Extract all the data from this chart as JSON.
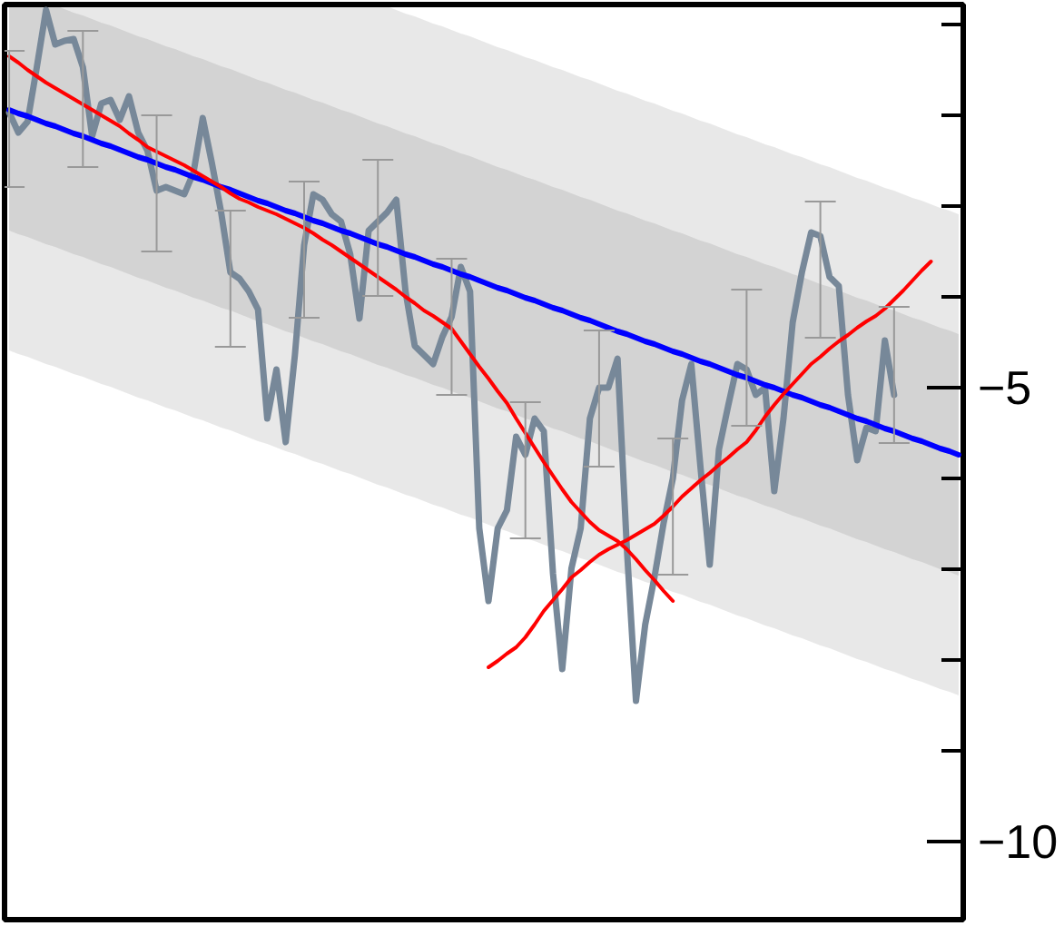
{
  "chart_data": {
    "type": "line",
    "categories": [
      null,
      null,
      null,
      null,
      null,
      null,
      null,
      null,
      null,
      null,
      null,
      null,
      null,
      null,
      null,
      null,
      null,
      null,
      null,
      null,
      null,
      null,
      null,
      null,
      null,
      null,
      null,
      null,
      null,
      null,
      null,
      null,
      null,
      null,
      null,
      null,
      null,
      null,
      null,
      null,
      null,
      null,
      null,
      null,
      null,
      null,
      null,
      null,
      null,
      null,
      null,
      null,
      null,
      null,
      null,
      null,
      null,
      null,
      null,
      null,
      null,
      null,
      null,
      null,
      null,
      null,
      null,
      null,
      null,
      null,
      null,
      null,
      null,
      null,
      null,
      null,
      null,
      null,
      null,
      null,
      null,
      null,
      null,
      null,
      null,
      null,
      null,
      null,
      null,
      null,
      null,
      null,
      null,
      null,
      null,
      null,
      null,
      null,
      null,
      null,
      null,
      null,
      null,
      null
    ],
    "ylim": [
      -10.86,
      -0.78
    ],
    "yticks": [
      {
        "value": -1,
        "label": null
      },
      {
        "value": -2,
        "label": null
      },
      {
        "value": -3,
        "label": null
      },
      {
        "value": -4,
        "label": null
      },
      {
        "value": -5,
        "label": "−5"
      },
      {
        "value": -6,
        "label": null
      },
      {
        "value": -7,
        "label": null
      },
      {
        "value": -8,
        "label": null
      },
      {
        "value": -9,
        "label": null
      },
      {
        "value": -10,
        "label": "−10"
      }
    ],
    "tick_labels": "y",
    "grid": false,
    "series": [
      {
        "values": [
          null,
          null,
          null,
          null,
          null,
          null,
          null,
          null,
          null,
          null,
          null,
          null,
          null,
          null,
          null,
          null,
          null,
          null,
          null,
          null,
          null,
          null,
          null,
          null,
          null,
          null,
          null,
          null,
          null,
          null,
          null,
          null,
          null,
          null,
          null,
          null,
          null,
          null,
          null,
          null,
          null,
          null,
          null,
          null,
          null,
          null,
          null,
          null,
          null,
          null,
          null,
          null,
          null,
          null,
          null,
          null,
          null,
          null,
          null,
          null,
          null,
          null,
          null,
          null,
          null,
          null,
          null,
          null,
          null,
          null,
          null,
          null,
          null,
          null,
          null,
          null,
          null,
          null,
          null,
          null,
          null,
          null,
          null,
          null,
          null,
          null,
          null,
          null,
          null,
          null,
          null,
          null,
          null,
          null,
          null,
          null,
          null,
          null,
          null,
          null,
          null,
          null,
          null,
          null
        ],
        "lower": [
          -4.59,
          -4.63,
          -4.66,
          -4.7,
          -4.74,
          -4.77,
          -4.81,
          -4.85,
          -4.88,
          -4.92,
          -4.96,
          -4.99,
          -5.03,
          -5.07,
          -5.11,
          -5.14,
          -5.18,
          -5.22,
          -5.25,
          -5.29,
          -5.33,
          -5.36,
          -5.4,
          -5.44,
          -5.47,
          -5.51,
          -5.55,
          -5.59,
          -5.62,
          -5.66,
          -5.7,
          -5.73,
          -5.77,
          -5.81,
          -5.84,
          -5.88,
          -5.92,
          -5.95,
          -5.99,
          -6.03,
          -6.07,
          -6.1,
          -6.14,
          -6.18,
          -6.21,
          -6.25,
          -6.29,
          -6.32,
          -6.36,
          -6.4,
          -6.43,
          -6.47,
          -6.51,
          -6.55,
          -6.58,
          -6.62,
          -6.66,
          -6.69,
          -6.73,
          -6.77,
          -6.8,
          -6.84,
          -6.88,
          -6.91,
          -6.95,
          -6.99,
          -7.03,
          -7.06,
          -7.1,
          -7.14,
          -7.17,
          -7.21,
          -7.25,
          -7.28,
          -7.32,
          -7.36,
          -7.39,
          -7.43,
          -7.47,
          -7.51,
          -7.54,
          -7.58,
          -7.62,
          -7.65,
          -7.69,
          -7.73,
          -7.76,
          -7.8,
          -7.84,
          -7.87,
          -7.91,
          -7.95,
          -7.99,
          -8.02,
          -8.06,
          -8.1,
          -8.13,
          -8.17,
          -8.21,
          -8.24,
          -8.28,
          -8.32,
          -8.35,
          -8.39
        ],
        "upper": [
          -0.78,
          -0.78,
          -0.78,
          -0.78,
          -0.78,
          -0.78,
          -0.78,
          -0.78,
          -0.78,
          -0.78,
          -0.78,
          -0.78,
          -0.78,
          -0.78,
          -0.78,
          -0.78,
          -0.78,
          -0.78,
          -0.78,
          -0.78,
          -0.78,
          -0.78,
          -0.78,
          -0.78,
          -0.78,
          -0.78,
          -0.78,
          -0.78,
          -0.78,
          -0.78,
          -0.78,
          -0.78,
          -0.78,
          -0.78,
          -0.78,
          -0.78,
          -0.78,
          -0.78,
          -0.78,
          -0.78,
          -0.78,
          -0.8,
          -0.84,
          -0.88,
          -0.91,
          -0.95,
          -0.99,
          -1.02,
          -1.06,
          -1.1,
          -1.13,
          -1.17,
          -1.21,
          -1.25,
          -1.28,
          -1.32,
          -1.36,
          -1.39,
          -1.43,
          -1.47,
          -1.5,
          -1.54,
          -1.58,
          -1.61,
          -1.65,
          -1.69,
          -1.73,
          -1.76,
          -1.8,
          -1.84,
          -1.87,
          -1.91,
          -1.95,
          -1.98,
          -2.02,
          -2.06,
          -2.09,
          -2.13,
          -2.17,
          -2.21,
          -2.24,
          -2.28,
          -2.32,
          -2.35,
          -2.39,
          -2.43,
          -2.46,
          -2.5,
          -2.54,
          -2.57,
          -2.61,
          -2.65,
          -2.69,
          -2.72,
          -2.76,
          -2.8,
          -2.83,
          -2.87,
          -2.91,
          -2.94,
          -2.98,
          -3.02,
          -3.05,
          -3.09
        ]
      },
      {
        "color": "#778899",
        "values": [
          -1.97,
          -2.19,
          -2.07,
          -1.47,
          -0.84,
          -1.22,
          -1.18,
          -1.16,
          -1.47,
          -2.23,
          -1.87,
          -1.83,
          -2.05,
          -1.79,
          -2.19,
          -2.39,
          -2.83,
          -2.79,
          -2.83,
          -2.87,
          -2.63,
          -2.03,
          -2.53,
          -3.07,
          -3.73,
          -3.8,
          -3.94,
          -4.14,
          -5.34,
          -4.8,
          -5.6,
          -4.64,
          -3.43,
          -2.87,
          -2.93,
          -3.09,
          -3.17,
          -3.53,
          -4.24,
          -3.27,
          -3.17,
          -3.07,
          -2.93,
          -3.94,
          -4.54,
          -4.64,
          -4.74,
          -4.44,
          -4.22,
          -3.67,
          -3.94,
          -6.55,
          -7.35,
          -6.55,
          -6.35,
          -5.54,
          -5.74,
          -5.34,
          -5.48,
          -7.05,
          -8.1,
          -6.99,
          -6.55,
          -5.34,
          -5.0,
          -5.0,
          -4.68,
          -6.75,
          -8.45,
          -7.61,
          -7.09,
          -6.49,
          -6.0,
          -5.14,
          -4.74,
          -5.88,
          -6.95,
          -5.68,
          -5.2,
          -4.74,
          -4.8,
          -5.08,
          -5.0,
          -6.14,
          -5.34,
          -4.28,
          -3.73,
          -3.29,
          -3.33,
          -3.78,
          -3.88,
          -5.08,
          -5.8,
          -5.44,
          -5.48,
          -4.48,
          -5.08,
          null,
          null,
          null,
          null,
          null,
          null,
          null
        ],
        "errors": [
          [
            -2.79,
            -1.29
          ],
          null,
          null,
          null,
          null,
          null,
          null,
          null,
          [
            -2.57,
            -1.07
          ],
          null,
          null,
          null,
          null,
          null,
          null,
          null,
          [
            -3.5,
            -2.0
          ],
          null,
          null,
          null,
          null,
          null,
          null,
          null,
          [
            -4.55,
            -3.05
          ],
          null,
          null,
          null,
          null,
          null,
          null,
          null,
          [
            -4.23,
            -2.73
          ],
          null,
          null,
          null,
          null,
          null,
          null,
          null,
          [
            -3.99,
            -2.49
          ],
          null,
          null,
          null,
          null,
          null,
          null,
          null,
          [
            -5.08,
            -3.58
          ],
          null,
          null,
          null,
          null,
          null,
          null,
          null,
          [
            -6.66,
            -5.16
          ],
          null,
          null,
          null,
          null,
          null,
          null,
          null,
          [
            -5.87,
            -4.37
          ],
          null,
          null,
          null,
          null,
          null,
          null,
          null,
          [
            -7.06,
            -5.56
          ],
          null,
          null,
          null,
          null,
          null,
          null,
          null,
          [
            -5.42,
            -3.92
          ],
          null,
          null,
          null,
          null,
          null,
          null,
          null,
          [
            -4.45,
            -2.95
          ],
          null,
          null,
          null,
          null,
          null,
          null,
          null,
          [
            -5.61,
            -4.11
          ],
          null,
          null,
          null,
          null,
          null,
          null,
          null
        ]
      },
      {
        "color": "#0000ff",
        "values": [
          -1.94,
          -1.98,
          -2.01,
          -2.05,
          -2.09,
          -2.12,
          -2.16,
          -2.2,
          -2.23,
          -2.27,
          -2.31,
          -2.34,
          -2.38,
          -2.42,
          -2.46,
          -2.49,
          -2.53,
          -2.57,
          -2.6,
          -2.64,
          -2.68,
          -2.71,
          -2.75,
          -2.79,
          -2.82,
          -2.86,
          -2.9,
          -2.94,
          -2.97,
          -3.01,
          -3.05,
          -3.08,
          -3.12,
          -3.16,
          -3.19,
          -3.23,
          -3.27,
          -3.3,
          -3.34,
          -3.38,
          -3.42,
          -3.45,
          -3.49,
          -3.53,
          -3.56,
          -3.6,
          -3.64,
          -3.67,
          -3.71,
          -3.75,
          -3.78,
          -3.82,
          -3.86,
          -3.9,
          -3.93,
          -3.97,
          -4.01,
          -4.04,
          -4.08,
          -4.12,
          -4.15,
          -4.19,
          -4.23,
          -4.26,
          -4.3,
          -4.34,
          -4.38,
          -4.41,
          -4.45,
          -4.49,
          -4.52,
          -4.56,
          -4.6,
          -4.63,
          -4.67,
          -4.71,
          -4.74,
          -4.78,
          -4.82,
          -4.86,
          -4.89,
          -4.93,
          -4.97,
          -5.0,
          -5.04,
          -5.08,
          -5.11,
          -5.15,
          -5.19,
          -5.22,
          -5.26,
          -5.3,
          -5.34,
          -5.37,
          -5.41,
          -5.45,
          -5.48,
          -5.52,
          -5.56,
          -5.59,
          -5.63,
          -5.67,
          -5.7,
          -5.74
        ],
        "lower": [
          -3.27,
          -3.31,
          -3.34,
          -3.38,
          -3.42,
          -3.45,
          -3.49,
          -3.53,
          -3.56,
          -3.6,
          -3.64,
          -3.67,
          -3.71,
          -3.75,
          -3.79,
          -3.82,
          -3.86,
          -3.9,
          -3.93,
          -3.97,
          -4.01,
          -4.04,
          -4.08,
          -4.12,
          -4.15,
          -4.19,
          -4.23,
          -4.27,
          -4.3,
          -4.34,
          -4.38,
          -4.41,
          -4.45,
          -4.49,
          -4.52,
          -4.56,
          -4.6,
          -4.63,
          -4.67,
          -4.71,
          -4.75,
          -4.78,
          -4.82,
          -4.86,
          -4.89,
          -4.93,
          -4.97,
          -5.0,
          -5.04,
          -5.08,
          -5.11,
          -5.15,
          -5.19,
          -5.23,
          -5.26,
          -5.3,
          -5.34,
          -5.37,
          -5.41,
          -5.45,
          -5.48,
          -5.52,
          -5.56,
          -5.59,
          -5.63,
          -5.67,
          -5.71,
          -5.74,
          -5.78,
          -5.82,
          -5.85,
          -5.89,
          -5.93,
          -5.96,
          -6.0,
          -6.04,
          -6.07,
          -6.11,
          -6.15,
          -6.19,
          -6.22,
          -6.26,
          -6.3,
          -6.33,
          -6.37,
          -6.41,
          -6.44,
          -6.48,
          -6.52,
          -6.55,
          -6.59,
          -6.63,
          -6.67,
          -6.7,
          -6.74,
          -6.78,
          -6.81,
          -6.85,
          -6.89,
          -6.92,
          -6.96,
          -7.0,
          -7.03,
          -7.07
        ],
        "upper": [
          -0.78,
          -0.78,
          -0.78,
          -0.78,
          -0.78,
          -0.79,
          -0.83,
          -0.87,
          -0.9,
          -0.94,
          -0.98,
          -1.01,
          -1.05,
          -1.09,
          -1.13,
          -1.16,
          -1.2,
          -1.24,
          -1.27,
          -1.31,
          -1.35,
          -1.38,
          -1.42,
          -1.46,
          -1.49,
          -1.53,
          -1.57,
          -1.61,
          -1.64,
          -1.68,
          -1.72,
          -1.75,
          -1.79,
          -1.83,
          -1.86,
          -1.9,
          -1.94,
          -1.97,
          -2.01,
          -2.05,
          -2.09,
          -2.12,
          -2.16,
          -2.2,
          -2.23,
          -2.27,
          -2.31,
          -2.34,
          -2.38,
          -2.42,
          -2.45,
          -2.49,
          -2.53,
          -2.57,
          -2.6,
          -2.64,
          -2.68,
          -2.71,
          -2.75,
          -2.79,
          -2.82,
          -2.86,
          -2.9,
          -2.93,
          -2.97,
          -3.01,
          -3.05,
          -3.08,
          -3.12,
          -3.16,
          -3.19,
          -3.23,
          -3.27,
          -3.3,
          -3.34,
          -3.38,
          -3.41,
          -3.45,
          -3.49,
          -3.53,
          -3.56,
          -3.6,
          -3.64,
          -3.67,
          -3.71,
          -3.75,
          -3.78,
          -3.82,
          -3.86,
          -3.89,
          -3.93,
          -3.97,
          -4.01,
          -4.04,
          -4.08,
          -4.12,
          -4.15,
          -4.19,
          -4.23,
          -4.26,
          -4.3,
          -4.34,
          -4.37,
          -4.41
        ]
      },
      {
        "color": "#ff0000",
        "values": [
          -1.35,
          -1.42,
          -1.5,
          -1.57,
          -1.64,
          -1.7,
          -1.76,
          -1.82,
          -1.88,
          -1.94,
          -2.0,
          -2.06,
          -2.12,
          -2.2,
          -2.27,
          -2.35,
          -2.4,
          -2.45,
          -2.5,
          -2.55,
          -2.61,
          -2.67,
          -2.73,
          -2.79,
          -2.86,
          -2.92,
          -2.96,
          -3.01,
          -3.05,
          -3.09,
          -3.14,
          -3.19,
          -3.24,
          -3.3,
          -3.37,
          -3.43,
          -3.5,
          -3.57,
          -3.64,
          -3.71,
          -3.78,
          -3.85,
          -3.92,
          -4.0,
          -4.07,
          -4.15,
          -4.21,
          -4.28,
          -4.35,
          -4.49,
          -4.63,
          -4.77,
          -4.9,
          -5.04,
          -5.17,
          -5.34,
          -5.5,
          -5.66,
          -5.82,
          -5.97,
          -6.12,
          -6.26,
          -6.37,
          -6.48,
          -6.57,
          -6.63,
          -6.69,
          -6.78,
          -6.89,
          -7.01,
          -7.12,
          -7.24,
          -7.35,
          null,
          null,
          null,
          null,
          null,
          null,
          null,
          null,
          null,
          null,
          null,
          null,
          null,
          null,
          null,
          null,
          null,
          null,
          null,
          null,
          null,
          null,
          null,
          null,
          null,
          null,
          null,
          null,
          null,
          null,
          null
        ]
      },
      {
        "color": "#ff0000",
        "values": [
          null,
          null,
          null,
          null,
          null,
          null,
          null,
          null,
          null,
          null,
          null,
          null,
          null,
          null,
          null,
          null,
          null,
          null,
          null,
          null,
          null,
          null,
          null,
          null,
          null,
          null,
          null,
          null,
          null,
          null,
          null,
          null,
          null,
          null,
          null,
          null,
          null,
          null,
          null,
          null,
          null,
          null,
          null,
          null,
          null,
          null,
          null,
          null,
          null,
          null,
          null,
          null,
          -8.08,
          -8.01,
          -7.93,
          -7.86,
          -7.75,
          -7.61,
          -7.46,
          -7.34,
          -7.22,
          -7.09,
          -7.01,
          -6.92,
          -6.84,
          -6.78,
          -6.73,
          -6.68,
          -6.62,
          -6.56,
          -6.5,
          -6.41,
          -6.31,
          -6.2,
          -6.11,
          -6.02,
          -5.94,
          -5.85,
          -5.77,
          -5.68,
          -5.6,
          -5.47,
          -5.32,
          -5.19,
          -5.07,
          -4.96,
          -4.85,
          -4.74,
          -4.66,
          -4.57,
          -4.49,
          -4.42,
          -4.34,
          -4.27,
          -4.21,
          -4.13,
          -4.03,
          -3.93,
          -3.82,
          -3.71,
          -3.61,
          null,
          null,
          null
        ]
      }
    ]
  }
}
